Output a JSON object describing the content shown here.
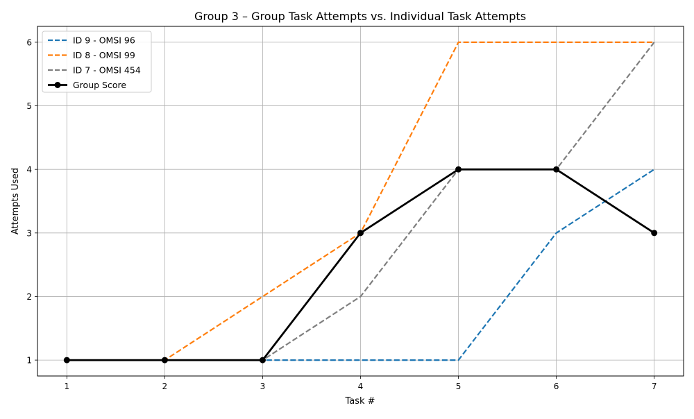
{
  "chart_data": {
    "type": "line",
    "title": "Group 3 – Group Task Attempts vs. Individual Task Attempts",
    "xlabel": "Task #",
    "ylabel": "Attempts Used",
    "x": [
      1,
      2,
      3,
      4,
      5,
      6,
      7
    ],
    "xlim": [
      0.7,
      7.3
    ],
    "ylim": [
      0.75,
      6.25
    ],
    "yticks": [
      1,
      2,
      3,
      4,
      5,
      6
    ],
    "grid": true,
    "legend_position": "top-left",
    "series": [
      {
        "name": "ID 9 - OMSI 96",
        "values": [
          1,
          1,
          1,
          1,
          1,
          3,
          4
        ],
        "color": "#1f77b4",
        "style": "dashed"
      },
      {
        "name": "ID 8 - OMSI 99",
        "values": [
          1,
          1,
          2,
          3,
          6,
          6,
          6
        ],
        "color": "#ff7f0e",
        "style": "dashed"
      },
      {
        "name": "ID 7 - OMSI 454",
        "values": [
          1,
          1,
          1,
          2,
          4,
          4,
          6
        ],
        "color": "#7f7f7f",
        "style": "dashed"
      },
      {
        "name": "Group Score",
        "values": [
          1,
          1,
          1,
          3,
          4,
          4,
          3
        ],
        "color": "#000000",
        "style": "solid-markers"
      }
    ]
  }
}
